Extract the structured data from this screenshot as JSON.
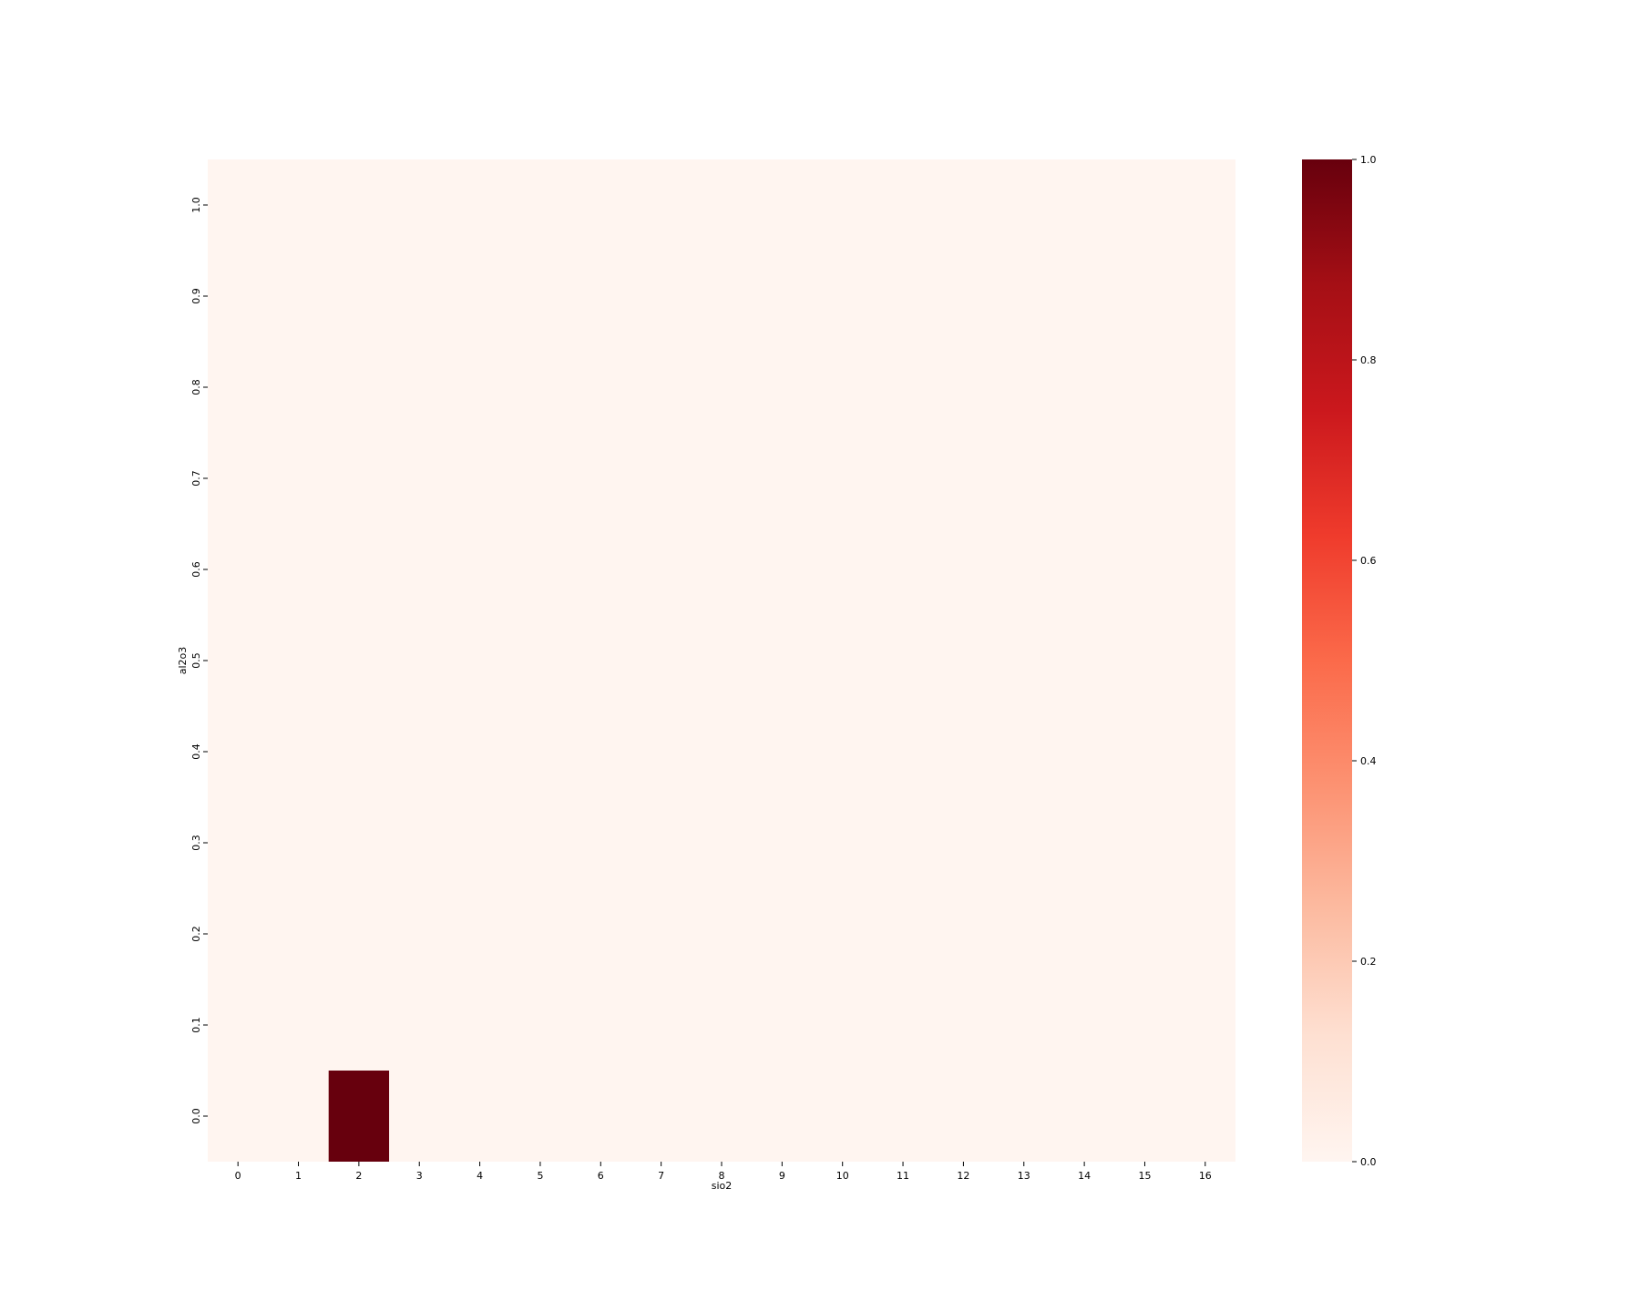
{
  "chart_data": {
    "type": "heatmap",
    "xlabel": "sio2",
    "ylabel": "al2o3",
    "x_categories": [
      "0",
      "1",
      "2",
      "3",
      "4",
      "5",
      "6",
      "7",
      "8",
      "9",
      "10",
      "11",
      "12",
      "13",
      "14",
      "15",
      "16"
    ],
    "y_range": [
      -0.05,
      1.05
    ],
    "y_ticks": [
      "0.0",
      "0.1",
      "0.2",
      "0.3",
      "0.4",
      "0.5",
      "0.6",
      "0.7",
      "0.8",
      "0.9",
      "1.0"
    ],
    "cells": [
      {
        "x": "2",
        "y_from": -0.05,
        "y_to": 0.05,
        "value": 1.0
      }
    ],
    "background_value": 0.0,
    "colorbar": {
      "cmap": "Reds",
      "min": 0.0,
      "max": 1.0,
      "ticks": [
        "0.0",
        "0.2",
        "0.4",
        "0.6",
        "0.8",
        "1.0"
      ],
      "colors": [
        "#fff5f0",
        "#fee0d2",
        "#fcbba1",
        "#fc9272",
        "#fb6a4a",
        "#ef3b2c",
        "#cb181d",
        "#a50f15",
        "#67000d"
      ]
    }
  }
}
